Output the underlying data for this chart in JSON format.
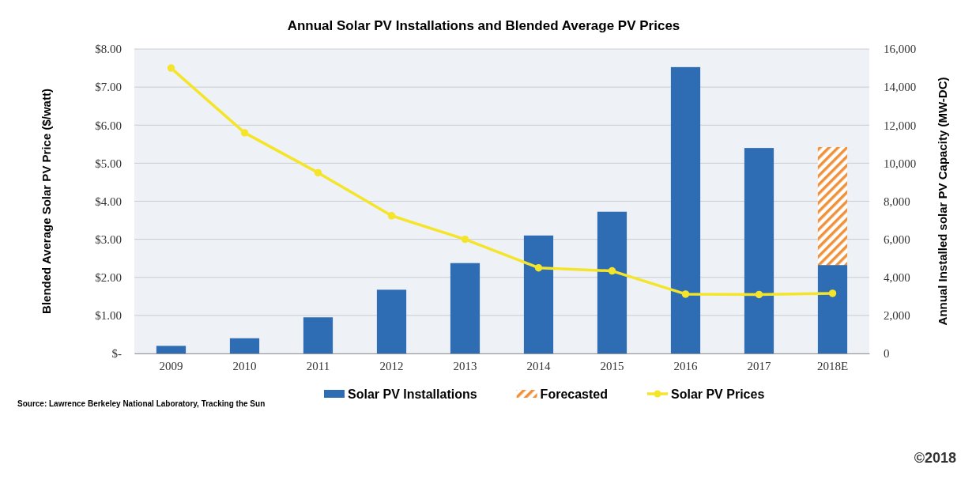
{
  "chart_data": {
    "type": "bar",
    "title": "Annual Solar PV Installations and Blended Average PV Prices",
    "ylabel": "Blended Average Solar PV Price ($/watt)",
    "y2label": "Annual Installed solar PV Capacity (MW-DC)",
    "categories": [
      "2009",
      "2010",
      "2011",
      "2012",
      "2013",
      "2014",
      "2015",
      "2016",
      "2017",
      "2018E"
    ],
    "stacked": true,
    "series": [
      {
        "name": "Solar PV Installations",
        "axis": "y2",
        "color": "#2e6db4",
        "values": [
          400,
          800,
          1900,
          3350,
          4750,
          6200,
          7450,
          15050,
          10800,
          4650
        ]
      },
      {
        "name": "Forecasted",
        "axis": "y2",
        "color": "#f0913a",
        "values": [
          null,
          null,
          null,
          null,
          null,
          null,
          null,
          null,
          null,
          6200
        ]
      },
      {
        "name": "Solar PV Prices",
        "type": "line",
        "axis": "y",
        "color": "#f5e52a",
        "marker": "circle",
        "values": [
          7.5,
          5.8,
          4.75,
          3.62,
          3.0,
          2.25,
          2.17,
          1.56,
          1.55,
          1.58
        ]
      }
    ],
    "ylim": [
      0,
      8
    ],
    "yticks": [
      {
        "value": 0,
        "label": "$-"
      },
      {
        "value": 1,
        "label": "$1.00"
      },
      {
        "value": 2,
        "label": "$2.00"
      },
      {
        "value": 3,
        "label": "$3.00"
      },
      {
        "value": 4,
        "label": "$4.00"
      },
      {
        "value": 5,
        "label": "$5.00"
      },
      {
        "value": 6,
        "label": "$6.00"
      },
      {
        "value": 7,
        "label": "$7.00"
      },
      {
        "value": 8,
        "label": "$8.00"
      }
    ],
    "y2lim": [
      0,
      16000
    ],
    "y2ticks": [
      0,
      {
        "value": 2000,
        "label": "2,000"
      },
      {
        "value": 4000,
        "label": "4,000"
      },
      {
        "value": 6000,
        "label": "6,000"
      },
      {
        "value": 8000,
        "label": "8,000"
      },
      {
        "value": 10000,
        "label": "10,000"
      },
      {
        "value": 12000,
        "label": "12,000"
      },
      {
        "value": 14000,
        "label": "14,000"
      },
      {
        "value": 16000,
        "label": "16,000"
      }
    ],
    "grid": "y",
    "legend": "bottom",
    "annotations": [
      "Source: Lawrence Berkeley National Laboratory, Tracking the Sun",
      "©2018"
    ]
  }
}
